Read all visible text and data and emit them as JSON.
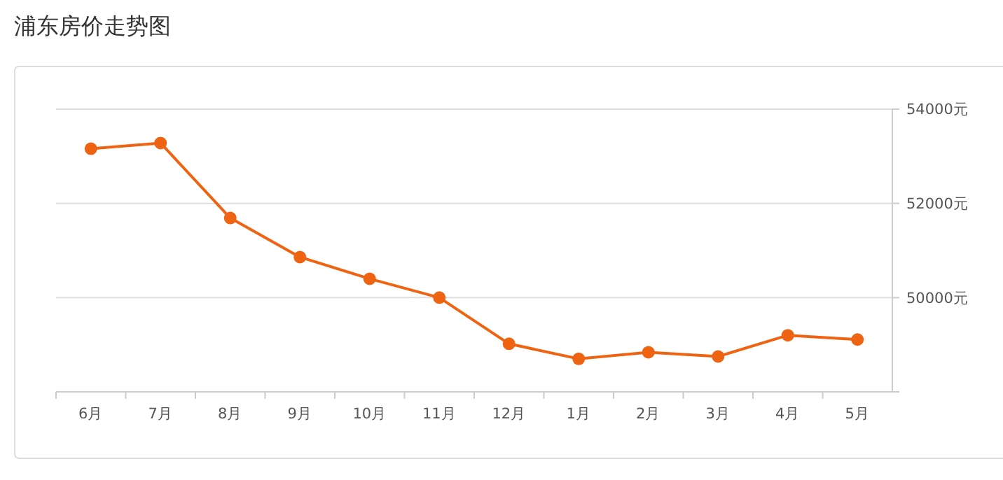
{
  "chart_data": {
    "type": "line",
    "title": "浦东房价走势图",
    "categories": [
      "6月",
      "7月",
      "8月",
      "9月",
      "10月",
      "11月",
      "12月",
      "1月",
      "2月",
      "3月",
      "4月",
      "5月"
    ],
    "series": [
      {
        "color": "#ee6412",
        "values": [
          53160,
          53280,
          51690,
          50860,
          50400,
          50000,
          49020,
          48700,
          48840,
          48750,
          49200,
          49110
        ]
      }
    ],
    "ylim": [
      48000,
      54000
    ],
    "yticks": [
      {
        "value": 48000,
        "label": null
      },
      {
        "value": 50000,
        "label": "50000元"
      },
      {
        "value": 52000,
        "label": "52000元"
      },
      {
        "value": 54000,
        "label": "54000元"
      }
    ],
    "grid": "y",
    "marker": "circle",
    "line_style": "solid"
  }
}
